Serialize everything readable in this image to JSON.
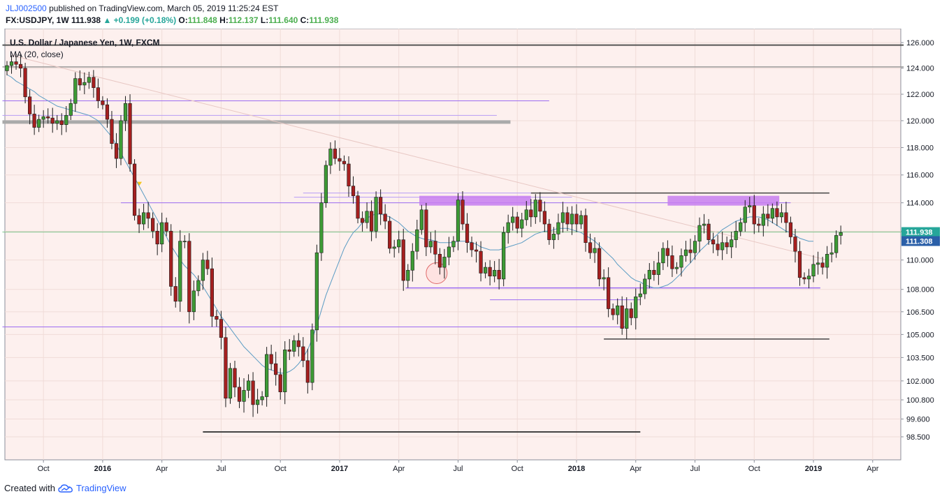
{
  "header": {
    "user": "JLJ002500",
    "published_text": "published on TradingView.com, March 05, 2019 11:25:24 EST",
    "symbol": "FX:USDJPY, 1W",
    "last": "111.938",
    "change": "+0.199 (+0.18%)",
    "o_label": "O:",
    "o": "111.848",
    "h_label": "H:",
    "h": "112.137",
    "l_label": "L:",
    "l": "111.640",
    "c_label": "C:",
    "c": "111.938"
  },
  "legend": {
    "title": "U.S. Dollar / Japanese Yen, 1W, FXCM",
    "indicator": "MA (20, close)"
  },
  "footer": {
    "prefix": "Created with",
    "brand": "TradingView"
  },
  "chart_data": {
    "type": "candlestick",
    "ylim": [
      97.5,
      127.0
    ],
    "y_scale": "log",
    "y_ticks": [
      "126.000",
      "124.000",
      "122.000",
      "120.000",
      "118.000",
      "116.000",
      "114.000",
      "112.000",
      "110.000",
      "108.000",
      "106.500",
      "105.000",
      "103.500",
      "102.000",
      "100.800",
      "99.600",
      "98.500"
    ],
    "x_ticks": [
      {
        "label": "Oct",
        "bold": false,
        "index": 8
      },
      {
        "label": "2016",
        "bold": true,
        "index": 21
      },
      {
        "label": "Apr",
        "bold": false,
        "index": 34
      },
      {
        "label": "Jul",
        "bold": false,
        "index": 47
      },
      {
        "label": "Oct",
        "bold": false,
        "index": 60
      },
      {
        "label": "2017",
        "bold": true,
        "index": 73
      },
      {
        "label": "Apr",
        "bold": false,
        "index": 86
      },
      {
        "label": "Jul",
        "bold": false,
        "index": 99
      },
      {
        "label": "Oct",
        "bold": false,
        "index": 112
      },
      {
        "label": "2018",
        "bold": true,
        "index": 125
      },
      {
        "label": "Apr",
        "bold": false,
        "index": 138
      },
      {
        "label": "Jul",
        "bold": false,
        "index": 151
      },
      {
        "label": "Oct",
        "bold": false,
        "index": 164
      },
      {
        "label": "2019",
        "bold": true,
        "index": 177
      },
      {
        "label": "Apr",
        "bold": false,
        "index": 190
      }
    ],
    "price_labels": [
      {
        "value": 111.938,
        "text": "111.938",
        "color": "#26a69a"
      },
      {
        "value": 111.308,
        "text": "111.308",
        "color": "#2a5fa8"
      }
    ],
    "closes": [
      124.2,
      124.5,
      124.3,
      124.0,
      121.8,
      120.5,
      119.5,
      120.1,
      120.3,
      120.2,
      119.8,
      120.0,
      119.7,
      120.4,
      121.3,
      123.2,
      122.7,
      122.9,
      123.3,
      122.5,
      121.5,
      121.2,
      120.1,
      118.3,
      117.2,
      120.0,
      121.3,
      116.8,
      113.1,
      112.5,
      113.3,
      112.9,
      112.0,
      111.1,
      112.6,
      112.0,
      108.2,
      107.2,
      111.3,
      111.3,
      106.5,
      107.9,
      108.6,
      110.0,
      109.4,
      106.2,
      106.0,
      104.8,
      100.9,
      102.8,
      101.6,
      100.7,
      101.4,
      102.0,
      100.5,
      100.8,
      101.0,
      103.7,
      103.1,
      102.4,
      101.3,
      104.0,
      103.9,
      104.6,
      104.2,
      103.3,
      101.9,
      105.3,
      110.5,
      114.0,
      116.7,
      117.9,
      117.2,
      117.0,
      116.8,
      115.2,
      114.5,
      112.9,
      112.6,
      113.4,
      112.0,
      114.4,
      113.2,
      112.7,
      110.8,
      110.9,
      111.4,
      108.6,
      109.3,
      110.6,
      112.1,
      113.5,
      110.9,
      111.3,
      110.4,
      109.5,
      110.2,
      110.9,
      111.3,
      114.2,
      112.5,
      111.2,
      110.7,
      110.6,
      109.1,
      109.5,
      108.9,
      109.3,
      108.7,
      111.9,
      112.6,
      113.0,
      112.2,
      112.8,
      113.5,
      113.0,
      114.2,
      113.4,
      112.5,
      111.4,
      111.8,
      112.6,
      113.3,
      112.5,
      113.2,
      112.5,
      113.1,
      111.2,
      110.5,
      110.8,
      108.7,
      108.8,
      106.7,
      106.3,
      106.9,
      105.4,
      106.7,
      106.1,
      107.5,
      107.7,
      108.7,
      109.3,
      109.0,
      109.8,
      110.8,
      110.3,
      109.4,
      109.5,
      110.3,
      110.7,
      110.5,
      111.3,
      112.4,
      112.5,
      111.4,
      111.1,
      110.7,
      111.2,
      110.9,
      111.4,
      112.0,
      112.6,
      113.7,
      113.8,
      112.5,
      112.4,
      113.2,
      112.9,
      113.6,
      113.0,
      113.3,
      112.6,
      111.6,
      110.6,
      108.8,
      108.7,
      108.9,
      109.7,
      109.8,
      109.5,
      110.4,
      110.5,
      111.7,
      111.9
    ],
    "ma20": [
      123.5,
      123.3,
      123.0,
      122.8,
      122.6,
      122.4,
      122.2,
      121.9,
      121.7,
      121.5,
      121.3,
      121.1,
      121.0,
      120.9,
      120.8,
      120.7,
      120.6,
      120.5,
      120.4,
      120.2,
      120.0,
      119.6,
      119.2,
      118.8,
      118.2,
      117.6,
      117.0,
      116.4,
      115.8,
      115.2,
      114.6,
      114.0,
      113.4,
      112.8,
      112.2,
      111.6,
      111.0,
      110.5,
      110.0,
      109.6,
      109.3,
      109.0,
      108.6,
      108.2,
      107.7,
      107.2,
      106.7,
      106.2,
      105.8,
      105.4,
      105.0,
      104.6,
      104.2,
      103.9,
      103.6,
      103.3,
      103.0,
      102.8,
      102.7,
      102.6,
      102.5,
      102.5,
      102.6,
      102.8,
      103.1,
      103.5,
      104.0,
      104.7,
      105.6,
      106.6,
      107.6,
      108.4,
      109.2,
      110.0,
      110.8,
      111.4,
      111.9,
      112.2,
      112.6,
      112.9,
      113.1,
      113.2,
      113.2,
      113.1,
      113.0,
      112.8,
      112.6,
      112.3,
      112.0,
      111.8,
      111.6,
      111.5,
      111.4,
      111.4,
      111.3,
      111.2,
      111.2,
      111.2,
      111.2,
      111.3,
      111.3,
      111.3,
      111.2,
      111.1,
      110.9,
      110.8,
      110.7,
      110.7,
      110.7,
      110.8,
      110.9,
      111.0,
      111.1,
      111.2,
      111.4,
      111.6,
      111.8,
      111.9,
      112.0,
      112.0,
      112.1,
      112.2,
      112.2,
      112.2,
      112.1,
      112.0,
      111.9,
      111.7,
      111.5,
      111.3,
      111.0,
      110.7,
      110.4,
      110.1,
      109.7,
      109.4,
      109.1,
      108.8,
      108.6,
      108.5,
      108.3,
      108.2,
      108.1,
      108.1,
      108.2,
      108.3,
      108.5,
      108.8,
      109.1,
      109.5,
      109.8,
      110.2,
      110.6,
      110.9,
      111.2,
      111.5,
      111.8,
      112.1,
      112.3,
      112.5,
      112.7,
      112.8,
      112.9,
      113.0,
      113.0,
      113.0,
      112.9,
      112.8,
      112.6,
      112.4,
      112.2,
      112.0,
      111.9,
      111.7,
      111.5,
      111.4,
      111.3,
      111.3
    ]
  }
}
